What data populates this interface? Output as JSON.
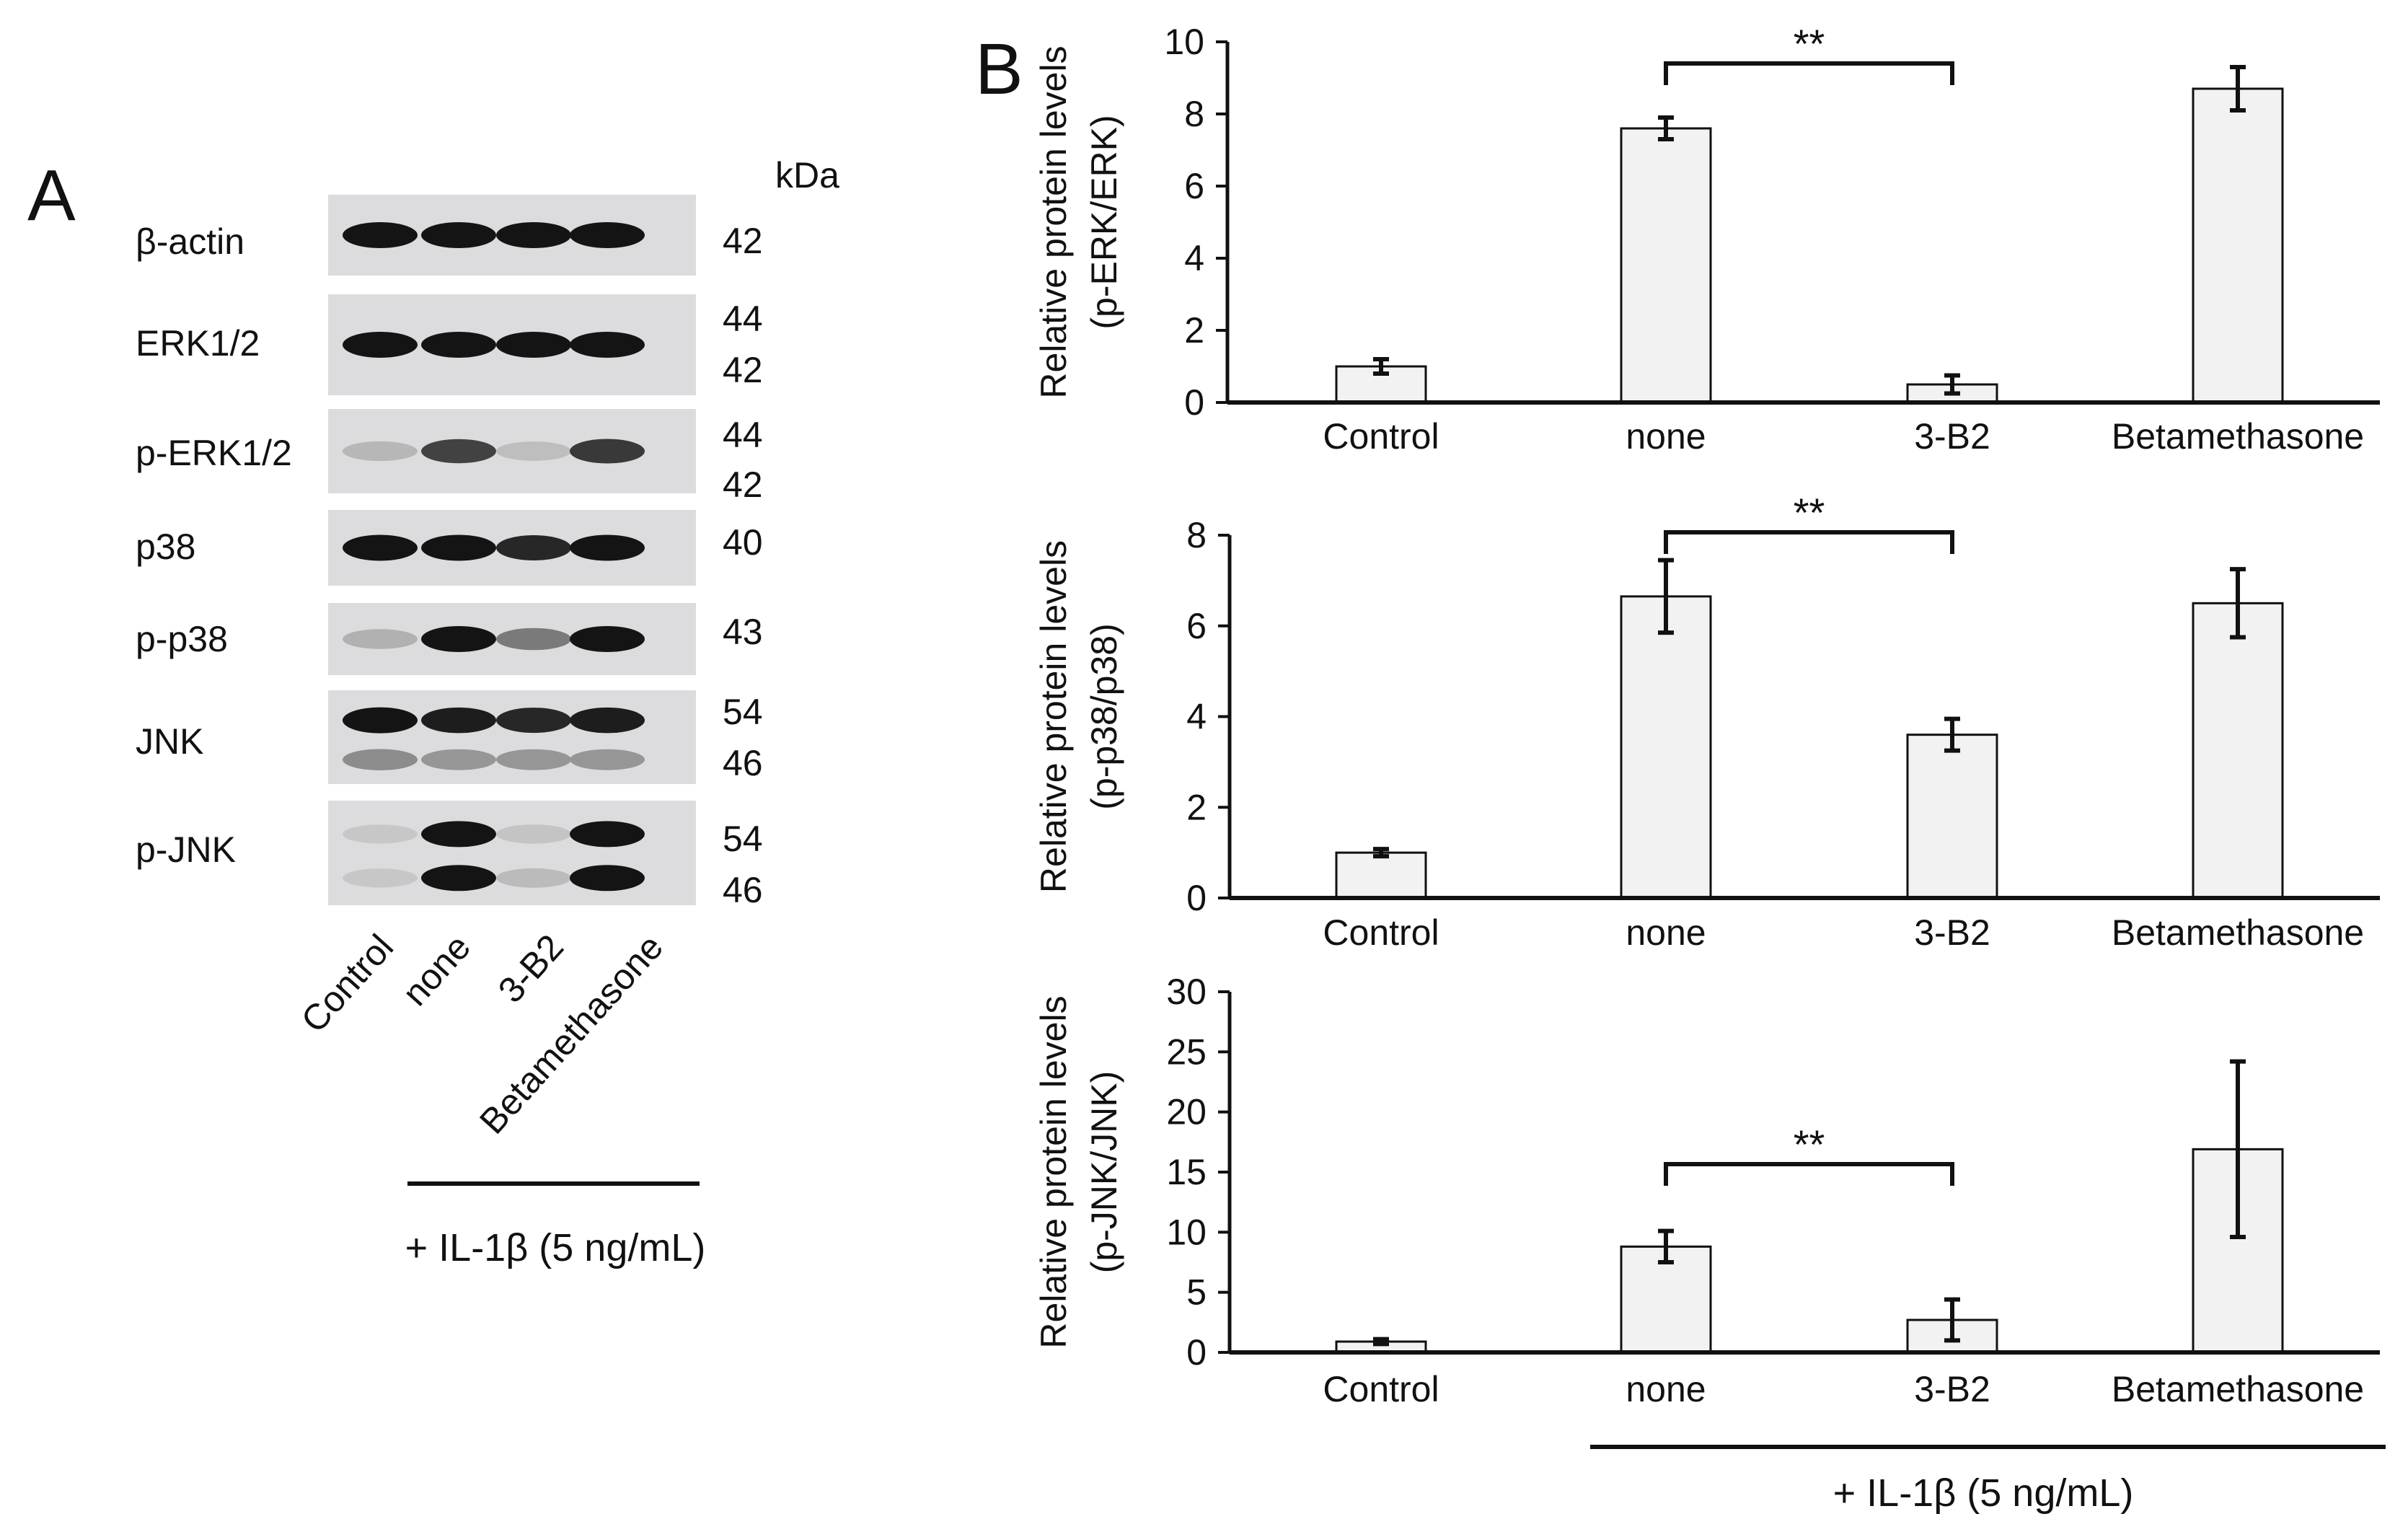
{
  "panel_a": {
    "label": "A",
    "kda_label": "kDa",
    "lanes": [
      "Control",
      "none",
      "3-B2",
      "Betamethasone"
    ],
    "treatment_label": "+ IL-1β (5 ng/mL)",
    "blots": [
      {
        "name": "β-actin",
        "markers": [
          "42"
        ],
        "bands": [
          [
            1,
            1,
            1,
            1
          ]
        ]
      },
      {
        "name": "ERK1/2",
        "markers": [
          "44",
          "42"
        ],
        "bands": [
          [
            1,
            1,
            1,
            1
          ]
        ]
      },
      {
        "name": "p-ERK1/2",
        "markers": [
          "44",
          "42"
        ],
        "bands": [
          [
            0.12,
            0.75,
            0.08,
            0.8
          ]
        ]
      },
      {
        "name": "p38",
        "markers": [
          "40"
        ],
        "bands": [
          [
            1,
            1,
            0.9,
            1
          ]
        ]
      },
      {
        "name": "p-p38",
        "markers": [
          "43"
        ],
        "bands": [
          [
            0.15,
            1,
            0.45,
            1
          ]
        ]
      },
      {
        "name": "JNK",
        "markers": [
          "54",
          "46"
        ],
        "bands": [
          [
            1,
            0.95,
            0.9,
            0.95
          ],
          [
            0.35,
            0.3,
            0.3,
            0.3
          ]
        ]
      },
      {
        "name": "p-JNK",
        "markers": [
          "54",
          "46"
        ],
        "bands": [
          [
            0.03,
            1,
            0.05,
            1
          ],
          [
            0.03,
            1,
            0.1,
            1
          ]
        ]
      }
    ]
  },
  "panel_b": {
    "label": "B",
    "treatment_label": "+ IL-1β (5 ng/mL)"
  },
  "chart_data": [
    {
      "type": "bar",
      "categories": [
        "Control",
        "none",
        "3-B2",
        "Betamethasone"
      ],
      "values": [
        1.0,
        7.6,
        0.5,
        8.7
      ],
      "errors": [
        0.2,
        0.3,
        0.25,
        0.6
      ],
      "ylabel": [
        "Relative protein levels",
        "(p-ERK/ERK)"
      ],
      "ylim": [
        0,
        10
      ],
      "yticks": [
        0,
        2,
        4,
        6,
        8,
        10
      ],
      "significance": {
        "from": 1,
        "to": 2,
        "label": "**"
      }
    },
    {
      "type": "bar",
      "categories": [
        "Control",
        "none",
        "3-B2",
        "Betamethasone"
      ],
      "values": [
        1.0,
        6.65,
        3.6,
        6.5
      ],
      "errors": [
        0.08,
        0.8,
        0.35,
        0.75
      ],
      "ylabel": [
        "Relative protein levels",
        "(p-p38/p38)"
      ],
      "ylim": [
        0,
        8
      ],
      "yticks": [
        0,
        2,
        4,
        6,
        8
      ],
      "significance": {
        "from": 1,
        "to": 2,
        "label": "**"
      }
    },
    {
      "type": "bar",
      "categories": [
        "Control",
        "none",
        "3-B2",
        "Betamethasone"
      ],
      "values": [
        0.9,
        8.8,
        2.7,
        16.9
      ],
      "errors": [
        0.2,
        1.3,
        1.7,
        7.3
      ],
      "ylabel": [
        "Relative protein levels",
        "(p-JNK/JNK)"
      ],
      "ylim": [
        0,
        30
      ],
      "yticks": [
        0,
        5,
        10,
        15,
        20,
        25,
        30
      ],
      "significance": {
        "from": 1,
        "to": 2,
        "label": "**"
      }
    }
  ]
}
